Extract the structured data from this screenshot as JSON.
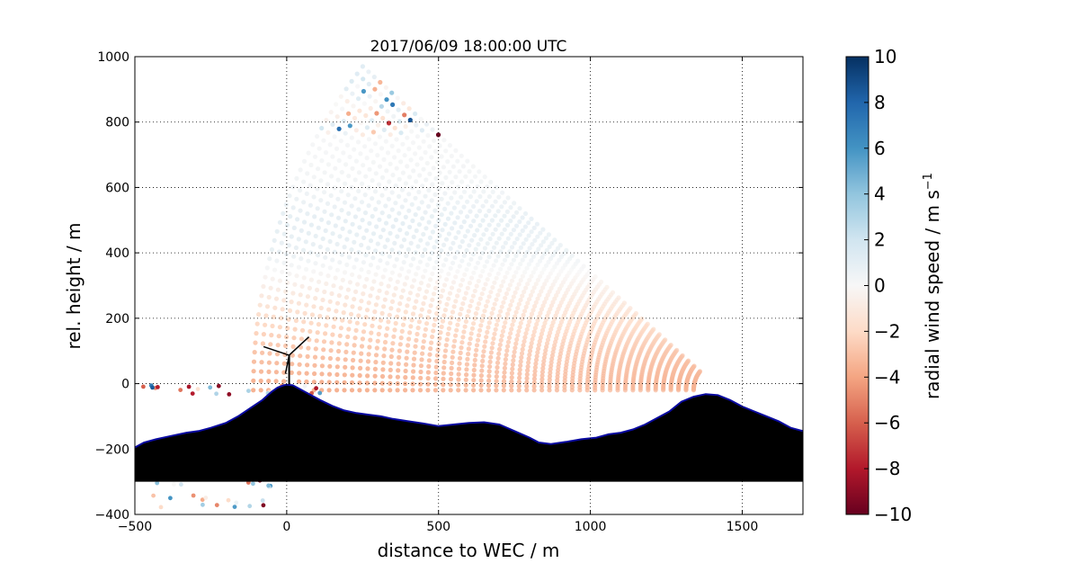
{
  "chart_data": {
    "type": "scatter",
    "title": "2017/06/09 18:00:00 UTC",
    "xlabel": "distance to WEC / m",
    "ylabel": "rel. height / m",
    "xlim": [
      -500,
      1700
    ],
    "ylim": [
      -400,
      1000
    ],
    "x_ticks": [
      "−500",
      "0",
      "500",
      "1000",
      "1500"
    ],
    "y_ticks": [
      "−400",
      "−200",
      "0",
      "200",
      "400",
      "600",
      "800",
      "1000"
    ],
    "grid": true,
    "colorbar": {
      "label": "radial wind speed / m s",
      "label_superscript": "−1",
      "range": [
        -10,
        10
      ],
      "ticks": [
        "−10",
        "−8",
        "−6",
        "−4",
        "−2",
        "0",
        "2",
        "4",
        "6",
        "8",
        "10"
      ],
      "colormap": "RdBu"
    },
    "scan": {
      "origin": [
        1430,
        -20
      ],
      "max_range": 1550,
      "min_range": 90,
      "elevation_max_deg": 40,
      "range_max_x": 1430
    },
    "wind_profile": {
      "heights": [
        0,
        100,
        200,
        300,
        400,
        500,
        600,
        700
      ],
      "speeds": [
        -3.5,
        -2.8,
        -1.8,
        -0.6,
        0.7,
        0.9,
        0.3,
        0.1
      ]
    },
    "terrain": {
      "x": [
        -500,
        -470,
        -430,
        -380,
        -330,
        -290,
        -250,
        -200,
        -160,
        -120,
        -80,
        -50,
        -30,
        -10,
        0,
        20,
        40,
        70,
        110,
        150,
        190,
        230,
        270,
        310,
        350,
        400,
        450,
        500,
        550,
        600,
        650,
        700,
        750,
        800,
        830,
        870,
        920,
        970,
        1020,
        1060,
        1100,
        1140,
        1180,
        1220,
        1260,
        1300,
        1340,
        1380,
        1420,
        1460,
        1500,
        1540,
        1580,
        1620,
        1660,
        1700
      ],
      "y": [
        -195,
        -180,
        -170,
        -160,
        -150,
        -145,
        -135,
        -120,
        -100,
        -75,
        -50,
        -25,
        -12,
        -5,
        -3,
        -5,
        -15,
        -30,
        -50,
        -68,
        -82,
        -90,
        -95,
        -100,
        -108,
        -115,
        -122,
        -130,
        -125,
        -120,
        -118,
        -125,
        -145,
        -165,
        -180,
        -185,
        -178,
        -170,
        -165,
        -155,
        -150,
        -140,
        -125,
        -105,
        -85,
        -55,
        -40,
        -32,
        -35,
        -50,
        -70,
        -85,
        -100,
        -115,
        -135,
        -145
      ],
      "base": -300,
      "outline_color": "#0a0aa0"
    },
    "turbine": {
      "x": 0,
      "hub_height": 95,
      "rotor_radius": 55
    }
  }
}
